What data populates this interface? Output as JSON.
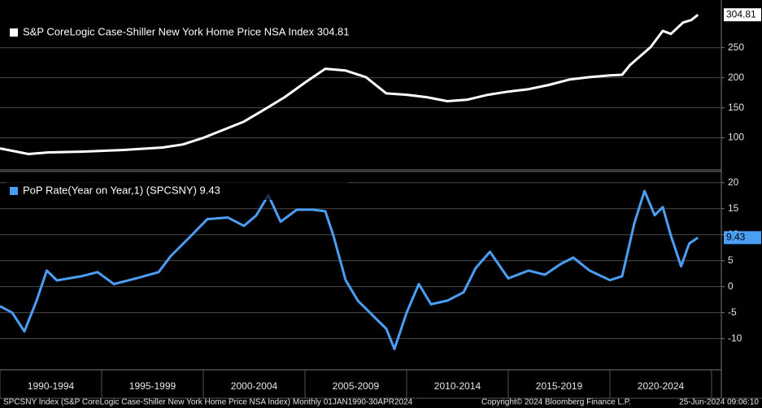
{
  "chart_data": [
    {
      "type": "line",
      "series": [
        {
          "name": "S&P CoreLogic Case-Shiller New York Home Price NSA Index 304.81",
          "color": "#ffffff"
        }
      ],
      "last_value_label": "304.81",
      "x": [
        1990,
        1991.4,
        1992.4,
        1994,
        1996,
        1998,
        1999,
        2000,
        2001,
        2002,
        2003,
        2004,
        2005,
        2006,
        2007,
        2008,
        2009,
        2010,
        2011,
        2012,
        2013,
        2014,
        2015,
        2016,
        2017,
        2018,
        2019,
        2020,
        2020.6,
        2021,
        2022,
        2022.6,
        2023,
        2023.6,
        2024,
        2024.33
      ],
      "values": [
        82.4,
        73,
        75.7,
        77,
        79.7,
        83.8,
        89,
        100,
        113.5,
        127,
        147,
        167.6,
        192,
        215,
        212,
        201,
        174,
        171.6,
        167.6,
        161,
        163.5,
        171.6,
        177,
        181,
        188,
        197,
        201,
        204,
        205,
        221.6,
        251,
        278,
        273,
        292,
        296,
        304.81
      ],
      "xlim": [
        1990,
        2025.48
      ],
      "ylim": [
        48,
        324
      ],
      "yticks": [
        100,
        150,
        200,
        250
      ],
      "grid": true
    },
    {
      "type": "line",
      "series": [
        {
          "name": "PoP Rate(Year on Year,1) (SPCSNY) 9.43",
          "color": "#4a9ff5"
        }
      ],
      "last_value_label": "9.43",
      "x": [
        1990,
        1990.6,
        1991.2,
        1991.8,
        1992.3,
        1992.8,
        1994,
        1994.8,
        1995.6,
        1996.8,
        1997.8,
        1998.4,
        1999.4,
        2000.2,
        2001.2,
        2002,
        2002.6,
        2003.2,
        2003.8,
        2004.6,
        2005.4,
        2006,
        2006.4,
        2007,
        2007.6,
        2008.4,
        2009,
        2009.4,
        2010,
        2010.6,
        2011.2,
        2012,
        2012.8,
        2013.4,
        2014.1,
        2015,
        2016,
        2016.8,
        2017.6,
        2018.2,
        2019,
        2020,
        2020.6,
        2021.2,
        2021.7,
        2022.2,
        2022.6,
        2023,
        2023.5,
        2023.9,
        2024.33
      ],
      "values": [
        -3.75,
        -5,
        -8.6,
        -2.7,
        3.1,
        1.2,
        2,
        2.8,
        0.5,
        1.7,
        2.8,
        5.9,
        9.8,
        13,
        13.3,
        11.7,
        13.7,
        17.6,
        12.5,
        14.8,
        14.8,
        14.5,
        9.8,
        1.25,
        -2.7,
        -5.8,
        -8.1,
        -12,
        -5,
        0.5,
        -3.4,
        -2.7,
        -1.1,
        3.6,
        6.7,
        1.6,
        3.1,
        2.3,
        4.4,
        5.6,
        3.1,
        1.25,
        2,
        12.2,
        18.4,
        13.75,
        15.3,
        9.8,
        3.9,
        8.3,
        9.43
      ],
      "xlim": [
        1990,
        2025.48
      ],
      "ylim": [
        -16,
        22
      ],
      "yticks": [
        -10,
        -5,
        0,
        5,
        10,
        15,
        20
      ],
      "xticks": [
        1990,
        1995,
        2000,
        2005,
        2010,
        2015,
        2020,
        2025
      ],
      "x_labels": [
        "1990-1994",
        "1995-1999",
        "2000-2004",
        "2005-2009",
        "2010-2014",
        "2015-2019",
        "2020-2024"
      ],
      "grid": true
    }
  ],
  "footer": {
    "source": "SPCSNY Index (S&P CoreLogic Case-Shiller New York Home Price NSA Index)  Monthly 01JAN1990-30APR2024",
    "copyright": "Copyright© 2024 Bloomberg Finance L.P.",
    "timestamp": "25-Jun-2024 09:06:10"
  }
}
